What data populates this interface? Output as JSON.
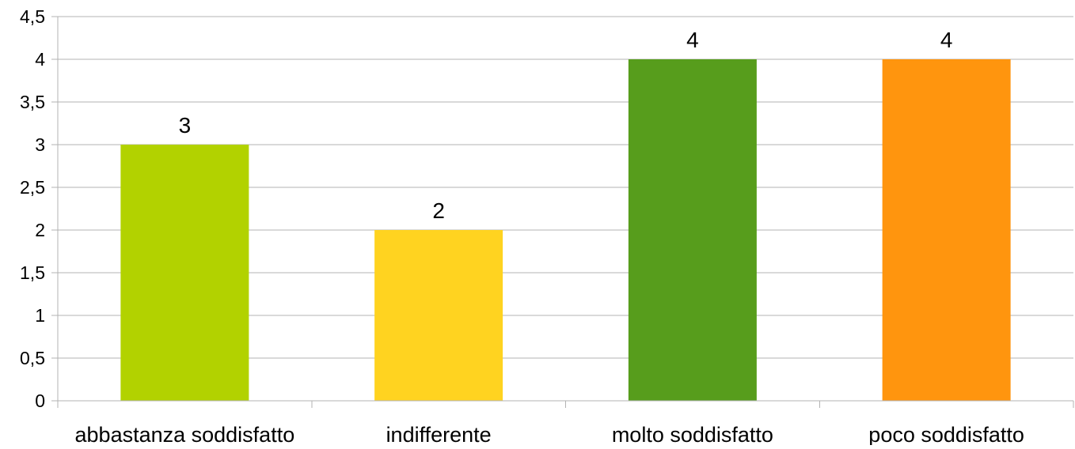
{
  "chart_data": {
    "type": "bar",
    "title": "",
    "xlabel": "",
    "ylabel": "",
    "categories": [
      "abbastanza soddisfatto",
      "indifferente",
      "molto soddisfatto",
      "poco soddisfatto"
    ],
    "values": [
      3,
      2,
      4,
      4
    ],
    "data_labels": [
      "3",
      "2",
      "4",
      "4"
    ],
    "colors": [
      "#b2d200",
      "#ffd320",
      "#579d1c",
      "#ff950e"
    ],
    "ylim": [
      0,
      4.5
    ],
    "yticks": [
      0,
      0.5,
      1,
      1.5,
      2,
      2.5,
      3,
      3.5,
      4,
      4.5
    ],
    "ytick_labels": [
      "0",
      "0,5",
      "1",
      "1,5",
      "2",
      "2,5",
      "3",
      "3,5",
      "4",
      "4,5"
    ],
    "grid": true,
    "legend": "none"
  }
}
